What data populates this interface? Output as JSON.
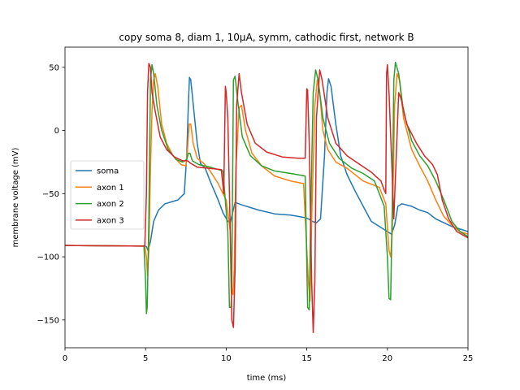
{
  "chart_data": {
    "type": "line",
    "title": "copy soma 8, diam 1, 10μA, symm, cathodic first, network B",
    "xlabel": "time (ms)",
    "ylabel": "membrane voltage (mV)",
    "xlim": [
      0,
      25
    ],
    "ylim": [
      -172,
      66
    ],
    "xticks": [
      0,
      5,
      10,
      15,
      20,
      25
    ],
    "yticks": [
      50,
      0,
      -50,
      -100,
      -150
    ],
    "xtick_labels": [
      "0",
      "5",
      "10",
      "15",
      "20",
      "25"
    ],
    "ytick_labels": [
      "50",
      "0",
      "−50",
      "−100",
      "−150"
    ],
    "grid": false,
    "legend_position": "center-left",
    "series": [
      {
        "name": "soma",
        "color": "#1f77b4",
        "points": [
          [
            0,
            -91
          ],
          [
            4.95,
            -91.5
          ],
          [
            5.05,
            -92
          ],
          [
            5.15,
            -95
          ],
          [
            5.3,
            -88
          ],
          [
            5.5,
            -72
          ],
          [
            5.8,
            -63
          ],
          [
            6.2,
            -58
          ],
          [
            7.0,
            -55
          ],
          [
            7.4,
            -50
          ],
          [
            7.55,
            -20
          ],
          [
            7.65,
            20
          ],
          [
            7.72,
            42
          ],
          [
            7.8,
            40
          ],
          [
            8.0,
            15
          ],
          [
            8.2,
            -10
          ],
          [
            8.4,
            -26
          ],
          [
            8.7,
            -30
          ],
          [
            9.0,
            -40
          ],
          [
            9.5,
            -55
          ],
          [
            9.8,
            -65
          ],
          [
            10.1,
            -72
          ],
          [
            10.25,
            -73
          ],
          [
            10.4,
            -65
          ],
          [
            10.55,
            -57
          ],
          [
            11.0,
            -59
          ],
          [
            12.0,
            -63
          ],
          [
            13.0,
            -66
          ],
          [
            14.0,
            -67
          ],
          [
            14.9,
            -69
          ],
          [
            15.1,
            -70
          ],
          [
            15.35,
            -72
          ],
          [
            15.6,
            -73
          ],
          [
            15.85,
            -70
          ],
          [
            16.1,
            -20
          ],
          [
            16.25,
            30
          ],
          [
            16.35,
            41
          ],
          [
            16.5,
            35
          ],
          [
            16.8,
            5
          ],
          [
            17.1,
            -20
          ],
          [
            17.5,
            -35
          ],
          [
            18.0,
            -48
          ],
          [
            18.5,
            -60
          ],
          [
            19.0,
            -72
          ],
          [
            19.5,
            -76
          ],
          [
            20.0,
            -80
          ],
          [
            20.25,
            -82
          ],
          [
            20.45,
            -75
          ],
          [
            20.65,
            -60
          ],
          [
            20.9,
            -58
          ],
          [
            21.5,
            -60
          ],
          [
            22.0,
            -63
          ],
          [
            22.5,
            -65
          ],
          [
            23.0,
            -70
          ],
          [
            23.5,
            -73
          ],
          [
            24.0,
            -76
          ],
          [
            24.5,
            -78
          ],
          [
            25,
            -80
          ]
        ]
      },
      {
        "name": "axon 1",
        "color": "#ff7f0e",
        "points": [
          [
            0,
            -91
          ],
          [
            4.95,
            -91.5
          ],
          [
            5.05,
            -100
          ],
          [
            5.12,
            -115
          ],
          [
            5.2,
            -95
          ],
          [
            5.3,
            -30
          ],
          [
            5.4,
            15
          ],
          [
            5.5,
            40
          ],
          [
            5.6,
            45
          ],
          [
            5.75,
            35
          ],
          [
            6.0,
            5
          ],
          [
            6.3,
            -10
          ],
          [
            6.7,
            -20
          ],
          [
            7.2,
            -27
          ],
          [
            7.5,
            -28
          ],
          [
            7.6,
            -15
          ],
          [
            7.7,
            5
          ],
          [
            7.8,
            5
          ],
          [
            7.95,
            -10
          ],
          [
            8.2,
            -22
          ],
          [
            8.6,
            -26
          ],
          [
            9.0,
            -32
          ],
          [
            9.5,
            -42
          ],
          [
            9.8,
            -50
          ],
          [
            10.0,
            -55
          ],
          [
            10.15,
            -70
          ],
          [
            10.25,
            -80
          ],
          [
            10.35,
            -125
          ],
          [
            10.42,
            -130
          ],
          [
            10.5,
            -110
          ],
          [
            10.6,
            -30
          ],
          [
            10.8,
            18
          ],
          [
            10.95,
            20
          ],
          [
            11.2,
            0
          ],
          [
            11.6,
            -18
          ],
          [
            12.2,
            -28
          ],
          [
            13.0,
            -36
          ],
          [
            14.0,
            -40
          ],
          [
            14.8,
            -42
          ],
          [
            15.1,
            -120
          ],
          [
            15.2,
            -135
          ],
          [
            15.3,
            -70
          ],
          [
            15.5,
            20
          ],
          [
            15.65,
            40
          ],
          [
            15.8,
            30
          ],
          [
            16.0,
            0
          ],
          [
            16.3,
            -15
          ],
          [
            16.8,
            -25
          ],
          [
            17.5,
            -30
          ],
          [
            18.5,
            -40
          ],
          [
            19.5,
            -45
          ],
          [
            19.9,
            -58
          ],
          [
            20.1,
            -95
          ],
          [
            20.2,
            -100
          ],
          [
            20.3,
            -80
          ],
          [
            20.45,
            20
          ],
          [
            20.6,
            45
          ],
          [
            20.75,
            40
          ],
          [
            21.0,
            10
          ],
          [
            21.5,
            -15
          ],
          [
            22.0,
            -28
          ],
          [
            22.5,
            -40
          ],
          [
            23.0,
            -55
          ],
          [
            23.5,
            -68
          ],
          [
            24.0,
            -75
          ],
          [
            24.5,
            -80
          ],
          [
            25,
            -82
          ]
        ]
      },
      {
        "name": "axon 2",
        "color": "#2ca02c",
        "points": [
          [
            0,
            -91
          ],
          [
            4.9,
            -91.5
          ],
          [
            5.0,
            -120
          ],
          [
            5.05,
            -145
          ],
          [
            5.1,
            -140
          ],
          [
            5.2,
            -70
          ],
          [
            5.3,
            40
          ],
          [
            5.4,
            52
          ],
          [
            5.5,
            45
          ],
          [
            5.7,
            20
          ],
          [
            6.0,
            0
          ],
          [
            6.4,
            -15
          ],
          [
            6.9,
            -23
          ],
          [
            7.3,
            -25
          ],
          [
            7.55,
            -23
          ],
          [
            7.65,
            -18
          ],
          [
            7.75,
            -18
          ],
          [
            7.9,
            -24
          ],
          [
            8.3,
            -27
          ],
          [
            9.0,
            -29
          ],
          [
            9.8,
            -32
          ],
          [
            10.1,
            -80
          ],
          [
            10.2,
            -140
          ],
          [
            10.3,
            -140
          ],
          [
            10.35,
            -120
          ],
          [
            10.45,
            40
          ],
          [
            10.55,
            43
          ],
          [
            10.7,
            25
          ],
          [
            11.0,
            -5
          ],
          [
            11.5,
            -20
          ],
          [
            12.2,
            -28
          ],
          [
            13.0,
            -32
          ],
          [
            14.0,
            -34
          ],
          [
            14.9,
            -36
          ],
          [
            15.05,
            -140
          ],
          [
            15.15,
            -142
          ],
          [
            15.25,
            -60
          ],
          [
            15.4,
            30
          ],
          [
            15.55,
            48
          ],
          [
            15.7,
            40
          ],
          [
            16.0,
            10
          ],
          [
            16.4,
            -10
          ],
          [
            17.0,
            -22
          ],
          [
            17.8,
            -30
          ],
          [
            18.5,
            -34
          ],
          [
            19.2,
            -40
          ],
          [
            19.8,
            -60
          ],
          [
            20.0,
            -100
          ],
          [
            20.1,
            -133
          ],
          [
            20.2,
            -134
          ],
          [
            20.3,
            -60
          ],
          [
            20.4,
            40
          ],
          [
            20.5,
            54
          ],
          [
            20.7,
            45
          ],
          [
            21.0,
            15
          ],
          [
            21.5,
            -8
          ],
          [
            22.0,
            -20
          ],
          [
            22.5,
            -28
          ],
          [
            23.0,
            -40
          ],
          [
            23.5,
            -55
          ],
          [
            24.0,
            -72
          ],
          [
            24.5,
            -80
          ],
          [
            25,
            -84
          ]
        ]
      },
      {
        "name": "axon 3",
        "color": "#d62728",
        "points": [
          [
            0,
            -91
          ],
          [
            4.95,
            -91.5
          ],
          [
            5.05,
            -50
          ],
          [
            5.12,
            30
          ],
          [
            5.2,
            53
          ],
          [
            5.3,
            50
          ],
          [
            5.4,
            30
          ],
          [
            5.6,
            15
          ],
          [
            5.9,
            -5
          ],
          [
            6.3,
            -15
          ],
          [
            6.8,
            -21
          ],
          [
            7.3,
            -24
          ],
          [
            7.6,
            -24
          ],
          [
            7.8,
            -26
          ],
          [
            8.2,
            -29
          ],
          [
            9.0,
            -30
          ],
          [
            9.7,
            -31
          ],
          [
            9.85,
            -50
          ],
          [
            9.95,
            35
          ],
          [
            10.0,
            30
          ],
          [
            10.1,
            10
          ],
          [
            10.25,
            -80
          ],
          [
            10.35,
            -150
          ],
          [
            10.45,
            -156
          ],
          [
            10.55,
            -110
          ],
          [
            10.65,
            20
          ],
          [
            10.8,
            45
          ],
          [
            10.95,
            30
          ],
          [
            11.3,
            5
          ],
          [
            11.8,
            -10
          ],
          [
            12.5,
            -17
          ],
          [
            13.5,
            -21
          ],
          [
            14.5,
            -22
          ],
          [
            14.9,
            -22
          ],
          [
            15.0,
            33
          ],
          [
            15.05,
            32
          ],
          [
            15.15,
            -10
          ],
          [
            15.3,
            -120
          ],
          [
            15.4,
            -160
          ],
          [
            15.5,
            -120
          ],
          [
            15.6,
            10
          ],
          [
            15.8,
            48
          ],
          [
            15.95,
            40
          ],
          [
            16.3,
            10
          ],
          [
            16.8,
            -10
          ],
          [
            17.5,
            -20
          ],
          [
            18.3,
            -27
          ],
          [
            19.0,
            -33
          ],
          [
            19.6,
            -40
          ],
          [
            19.8,
            -47
          ],
          [
            19.9,
            -50
          ],
          [
            19.95,
            45
          ],
          [
            20.0,
            52
          ],
          [
            20.1,
            30
          ],
          [
            20.25,
            -20
          ],
          [
            20.4,
            -70
          ],
          [
            20.55,
            -20
          ],
          [
            20.7,
            30
          ],
          [
            20.85,
            25
          ],
          [
            21.2,
            5
          ],
          [
            21.8,
            -10
          ],
          [
            22.3,
            -20
          ],
          [
            22.8,
            -27
          ],
          [
            23.1,
            -35
          ],
          [
            23.4,
            -55
          ],
          [
            23.8,
            -70
          ],
          [
            24.3,
            -80
          ],
          [
            25,
            -85
          ]
        ]
      }
    ]
  }
}
